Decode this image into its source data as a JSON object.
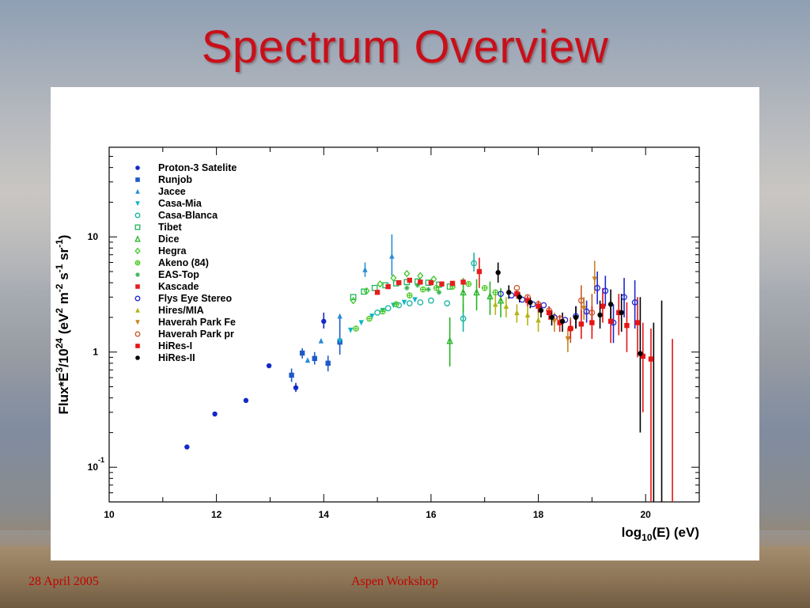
{
  "slide": {
    "title": "Spectrum Overview",
    "footer_date": "28 April 2005",
    "footer_event": "Aspen Workshop"
  },
  "colors": {
    "title": "#c8101a",
    "footer": "#c40000"
  },
  "chart_data": {
    "type": "scatter",
    "title": "",
    "xlabel": "log10(E) (eV)",
    "ylabel": "Flux*E^3/10^24 (eV^2 m^-2 s^-1 sr^-1)",
    "xlim": [
      10,
      21
    ],
    "ylim": [
      0.05,
      60
    ],
    "ylog": true,
    "grid": false,
    "legend_position": "top-left",
    "x_ticks": [
      "10",
      "12",
      "14",
      "16",
      "18",
      "20"
    ],
    "y_ticks": [
      {
        "base": "10",
        "exp": "-1"
      },
      {
        "base": "1",
        "exp": ""
      },
      {
        "base": "10",
        "exp": ""
      }
    ],
    "series": [
      {
        "name": "Proton-3 Satelite",
        "color": "#1428c8",
        "marker": "circle-filled",
        "x": [
          11.45,
          11.97,
          12.55,
          12.98,
          13.48,
          14.0
        ],
        "y": [
          0.15,
          0.29,
          0.38,
          0.76,
          0.49,
          1.85
        ],
        "err": [
          [
            0.15,
            0.15
          ],
          [
            0.29,
            0.29
          ],
          [
            0.38,
            0.38
          ],
          [
            0.76,
            0.76
          ],
          [
            0.45,
            0.54
          ],
          [
            1.6,
            2.2
          ]
        ]
      },
      {
        "name": "Runjob",
        "color": "#1e5ac8",
        "marker": "square-filled",
        "x": [
          13.4,
          13.6,
          13.83,
          14.08,
          14.3
        ],
        "y": [
          0.63,
          0.98,
          0.88,
          0.8,
          1.22
        ],
        "err": [
          [
            0.55,
            0.72
          ],
          [
            0.88,
            1.08
          ],
          [
            0.78,
            1.0
          ],
          [
            0.68,
            0.93
          ],
          [
            0.95,
            2.1
          ]
        ]
      },
      {
        "name": "Jacee",
        "color": "#2a8cd6",
        "marker": "triangle-up",
        "x": [
          13.7,
          13.95,
          14.3,
          14.77,
          15.27
        ],
        "y": [
          0.85,
          1.25,
          2.05,
          5.2,
          6.8
        ],
        "err": [
          [
            0.85,
            0.85
          ],
          [
            1.25,
            1.25
          ],
          [
            2.05,
            2.05
          ],
          [
            4.5,
            6.0
          ],
          [
            4.6,
            10.5
          ]
        ]
      },
      {
        "name": "Casa-Mia",
        "color": "#10b4c8",
        "marker": "triangle-down",
        "x": [
          14.3,
          14.5,
          14.7,
          14.9,
          15.1,
          15.3,
          15.5,
          15.7
        ],
        "y": [
          1.25,
          1.55,
          1.8,
          2.05,
          2.3,
          2.55,
          2.7,
          2.85
        ],
        "err": [
          [
            1.25,
            1.25
          ],
          [
            1.55,
            1.55
          ],
          [
            1.8,
            1.8
          ],
          [
            2.05,
            2.05
          ],
          [
            2.3,
            2.3
          ],
          [
            2.55,
            2.55
          ],
          [
            2.7,
            2.7
          ],
          [
            2.85,
            2.85
          ]
        ]
      },
      {
        "name": "Casa-Blanca",
        "color": "#14b4a0",
        "marker": "circle-open",
        "x": [
          15.0,
          15.2,
          15.4,
          15.6,
          15.8,
          16.0,
          16.3,
          16.6,
          16.8
        ],
        "y": [
          2.2,
          2.4,
          2.55,
          2.65,
          2.7,
          2.8,
          2.65,
          1.95,
          5.9
        ],
        "err": [
          [
            2.2,
            2.2
          ],
          [
            2.4,
            2.4
          ],
          [
            2.55,
            2.55
          ],
          [
            2.65,
            2.65
          ],
          [
            2.7,
            2.7
          ],
          [
            2.8,
            2.8
          ],
          [
            2.65,
            2.65
          ],
          [
            1.5,
            2.6
          ],
          [
            5.0,
            7.3
          ]
        ]
      },
      {
        "name": "Tibet",
        "color": "#1eb45a",
        "marker": "square-open",
        "x": [
          14.55,
          14.75,
          14.95,
          15.15,
          15.35,
          15.55,
          15.75,
          15.95,
          16.15,
          16.35
        ],
        "y": [
          3.0,
          3.35,
          3.6,
          3.8,
          3.95,
          4.05,
          4.1,
          4.0,
          3.85,
          3.7
        ],
        "err": [
          [
            3.0,
            3.0
          ],
          [
            3.35,
            3.35
          ],
          [
            3.6,
            3.6
          ],
          [
            3.8,
            3.8
          ],
          [
            3.95,
            3.95
          ],
          [
            4.05,
            4.05
          ],
          [
            4.1,
            4.1
          ],
          [
            4.0,
            4.0
          ],
          [
            3.85,
            3.85
          ],
          [
            3.7,
            3.7
          ]
        ]
      },
      {
        "name": "Dice",
        "color": "#28b428",
        "marker": "triangle-open",
        "x": [
          16.35,
          16.6,
          16.85,
          17.1,
          17.3
        ],
        "y": [
          1.25,
          3.3,
          3.3,
          3.05,
          2.8
        ],
        "err": [
          [
            0.75,
            2.0
          ],
          [
            2.2,
            4.4
          ],
          [
            2.3,
            4.3
          ],
          [
            2.1,
            4.1
          ],
          [
            2.0,
            3.6
          ]
        ]
      },
      {
        "name": "Hegra",
        "color": "#3cc828",
        "marker": "diamond-open",
        "x": [
          14.55,
          14.8,
          15.05,
          15.3,
          15.55,
          15.8,
          16.05
        ],
        "y": [
          2.8,
          3.4,
          3.9,
          4.4,
          4.8,
          4.6,
          4.3
        ],
        "err": [
          [
            2.8,
            2.8
          ],
          [
            3.4,
            3.4
          ],
          [
            3.9,
            3.9
          ],
          [
            4.4,
            4.4
          ],
          [
            4.8,
            4.8
          ],
          [
            4.6,
            4.6
          ],
          [
            4.3,
            4.3
          ]
        ]
      },
      {
        "name": "Akeno (84)",
        "color": "#46c81e",
        "marker": "cross-circle",
        "x": [
          14.6,
          14.85,
          15.1,
          15.35,
          15.6,
          15.85,
          16.1,
          16.4,
          16.7,
          17.0,
          17.2
        ],
        "y": [
          1.6,
          1.95,
          2.25,
          2.6,
          3.1,
          3.5,
          3.6,
          3.7,
          3.9,
          3.6,
          3.3
        ],
        "err": [
          [
            1.6,
            1.6
          ],
          [
            1.95,
            1.95
          ],
          [
            2.25,
            2.25
          ],
          [
            2.6,
            2.6
          ],
          [
            3.1,
            3.1
          ],
          [
            3.5,
            3.5
          ],
          [
            3.6,
            3.6
          ],
          [
            3.7,
            3.7
          ],
          [
            3.9,
            3.9
          ],
          [
            3.6,
            3.6
          ],
          [
            3.3,
            3.3
          ]
        ]
      },
      {
        "name": "EAS-Top",
        "color": "#32b450",
        "marker": "star",
        "x": [
          15.55,
          15.75,
          15.95,
          16.15
        ],
        "y": [
          3.6,
          3.8,
          3.5,
          3.3
        ],
        "err": [
          [
            3.6,
            3.6
          ],
          [
            3.8,
            3.8
          ],
          [
            3.5,
            3.5
          ],
          [
            3.3,
            3.3
          ]
        ]
      },
      {
        "name": "Kascade",
        "color": "#e61e1e",
        "marker": "square-filled",
        "x": [
          15.0,
          15.2,
          15.4,
          15.6,
          15.8,
          16.0,
          16.2,
          16.4,
          16.6,
          16.9
        ],
        "y": [
          3.3,
          3.7,
          4.0,
          4.2,
          4.05,
          4.0,
          3.9,
          3.95,
          4.05,
          5.0
        ],
        "err": [
          [
            3.3,
            3.3
          ],
          [
            3.7,
            3.7
          ],
          [
            4.0,
            4.0
          ],
          [
            4.2,
            4.2
          ],
          [
            4.05,
            4.05
          ],
          [
            4.0,
            4.0
          ],
          [
            3.9,
            3.9
          ],
          [
            3.95,
            3.95
          ],
          [
            4.05,
            4.05
          ],
          [
            3.6,
            6.6
          ]
        ]
      },
      {
        "name": "Flys Eye Stereo",
        "color": "#1e28d2",
        "marker": "circle-open",
        "x": [
          17.3,
          17.5,
          17.7,
          17.9,
          18.1,
          18.3,
          18.5,
          18.7,
          18.9,
          19.1,
          19.25,
          19.4,
          19.6,
          19.8
        ],
        "y": [
          3.2,
          3.1,
          2.85,
          2.6,
          2.55,
          2.0,
          1.9,
          2.05,
          2.25,
          3.6,
          3.4,
          1.8,
          3.0,
          2.7
        ],
        "err": [
          [
            3.2,
            3.2
          ],
          [
            3.1,
            3.1
          ],
          [
            2.85,
            2.85
          ],
          [
            2.6,
            2.6
          ],
          [
            2.55,
            2.55
          ],
          [
            2.0,
            2.0
          ],
          [
            1.9,
            1.9
          ],
          [
            1.6,
            2.5
          ],
          [
            1.8,
            2.8
          ],
          [
            2.6,
            5.0
          ],
          [
            2.5,
            4.6
          ],
          [
            1.2,
            2.6
          ],
          [
            2.0,
            4.4
          ],
          [
            1.6,
            4.2
          ]
        ]
      },
      {
        "name": "Hires/MIA",
        "color": "#b4b414",
        "marker": "triangle-up",
        "x": [
          17.2,
          17.4,
          17.6,
          17.8,
          18.0
        ],
        "y": [
          2.6,
          2.5,
          2.2,
          2.1,
          1.9
        ],
        "err": [
          [
            2.1,
            3.2
          ],
          [
            2.0,
            3.0
          ],
          [
            1.8,
            2.6
          ],
          [
            1.7,
            2.5
          ],
          [
            1.5,
            2.3
          ]
        ]
      },
      {
        "name": "Haverah Park Fe",
        "color": "#c8821e",
        "marker": "triangle-down",
        "x": [
          18.3,
          18.55,
          18.85,
          19.05
        ],
        "y": [
          1.85,
          1.3,
          2.4,
          4.3
        ],
        "err": [
          [
            1.5,
            2.2
          ],
          [
            1.0,
            1.6
          ],
          [
            1.9,
            3.0
          ],
          [
            3.2,
            6.2
          ]
        ]
      },
      {
        "name": "Haverah Park pr",
        "color": "#c85a28",
        "marker": "circle-open",
        "x": [
          17.6,
          17.8,
          18.0,
          18.2,
          18.4,
          18.6,
          18.8,
          19.0
        ],
        "y": [
          3.6,
          3.0,
          2.6,
          2.3,
          1.95,
          1.6,
          2.8,
          2.2
        ],
        "err": [
          [
            3.6,
            3.6
          ],
          [
            3.0,
            3.0
          ],
          [
            2.6,
            2.6
          ],
          [
            2.3,
            2.3
          ],
          [
            1.95,
            1.95
          ],
          [
            1.2,
            2.0
          ],
          [
            2.0,
            3.8
          ],
          [
            1.5,
            3.2
          ]
        ]
      },
      {
        "name": "HiRes-I",
        "color": "#e61414",
        "marker": "square-filled",
        "x": [
          17.6,
          17.8,
          18.0,
          18.2,
          18.4,
          18.6,
          18.8,
          19.0,
          19.2,
          19.35,
          19.5,
          19.65,
          19.85,
          19.95,
          20.1,
          20.5
        ],
        "y": [
          3.2,
          2.8,
          2.5,
          2.2,
          1.8,
          1.6,
          1.75,
          1.8,
          2.5,
          1.85,
          2.2,
          1.7,
          1.8,
          0.92,
          0.87,
          0.05
        ],
        "err": [
          [
            2.9,
            3.5
          ],
          [
            2.5,
            3.1
          ],
          [
            2.2,
            2.8
          ],
          [
            1.9,
            2.5
          ],
          [
            1.5,
            2.1
          ],
          [
            1.3,
            1.9
          ],
          [
            1.3,
            2.3
          ],
          [
            1.3,
            2.5
          ],
          [
            1.8,
            3.6
          ],
          [
            1.2,
            2.8
          ],
          [
            1.4,
            3.2
          ],
          [
            1.0,
            2.7
          ],
          [
            0.9,
            3.0
          ],
          [
            0.3,
            1.8
          ],
          [
            0.05,
            1.6
          ],
          [
            0.05,
            1.3
          ]
        ]
      },
      {
        "name": "HiRes-II",
        "color": "#000000",
        "marker": "circle-filled",
        "x": [
          17.25,
          17.45,
          17.65,
          17.85,
          18.05,
          18.25,
          18.45,
          18.7,
          19.15,
          19.35,
          19.55,
          19.9,
          20.15,
          20.3
        ],
        "y": [
          4.9,
          3.3,
          3.0,
          2.7,
          2.3,
          2.0,
          1.85,
          2.0,
          2.1,
          2.6,
          2.2,
          0.97,
          0.05,
          0.05
        ],
        "err": [
          [
            4.0,
            6.0
          ],
          [
            2.9,
            3.8
          ],
          [
            2.7,
            3.3
          ],
          [
            2.4,
            3.0
          ],
          [
            2.0,
            2.6
          ],
          [
            1.7,
            2.3
          ],
          [
            1.5,
            2.2
          ],
          [
            1.6,
            2.5
          ],
          [
            1.6,
            2.8
          ],
          [
            1.9,
            3.5
          ],
          [
            1.5,
            3.2
          ],
          [
            0.2,
            3.0
          ],
          [
            0.05,
            1.8
          ],
          [
            0.05,
            2.8
          ]
        ]
      }
    ]
  }
}
